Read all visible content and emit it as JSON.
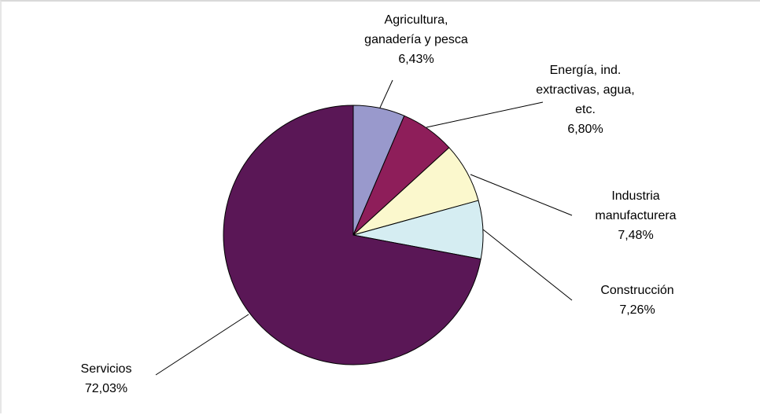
{
  "chart_data": {
    "type": "pie",
    "title": "",
    "legend": "none",
    "start_angle_deg": 0,
    "direction": "clockwise",
    "slices": [
      {
        "name": "Agricultura, ganadería y pesca",
        "label_lines": [
          "Agricultura,",
          "ganadería y pesca"
        ],
        "value": 6.43,
        "value_label": "6,43%",
        "color": "#9999cc"
      },
      {
        "name": "Energía, ind. extractivas, agua, etc.",
        "label_lines": [
          "Energía, ind.",
          "extractivas, agua,",
          "etc."
        ],
        "value": 6.8,
        "value_label": "6,80%",
        "color": "#8e1e5a"
      },
      {
        "name": "Industria manufacturera",
        "label_lines": [
          "Industria",
          "manufacturera"
        ],
        "value": 7.48,
        "value_label": "7,48%",
        "color": "#fbf8cd"
      },
      {
        "name": "Construcción",
        "label_lines": [
          "Construcción"
        ],
        "value": 7.26,
        "value_label": "7,26%",
        "color": "#d5edf2"
      },
      {
        "name": "Servicios",
        "label_lines": [
          "Servicios"
        ],
        "value": 72.03,
        "value_label": "72,03%",
        "color": "#5a1756"
      }
    ]
  }
}
